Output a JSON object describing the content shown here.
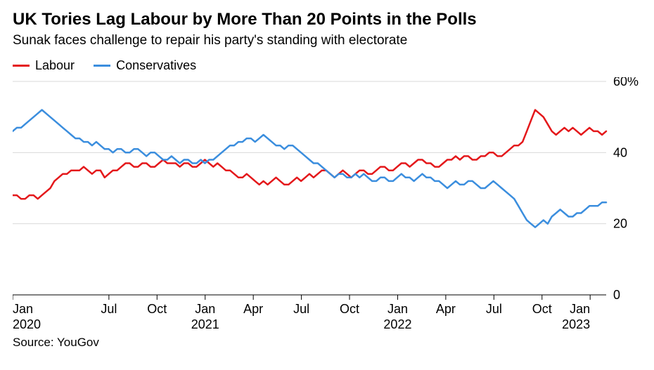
{
  "title": "UK Tories Lag Labour by More Than 20 Points in the Polls",
  "subtitle": "Sunak faces challenge to repair his party's standing with electorate",
  "source": "Source: YouGov",
  "legend": {
    "series1": {
      "label": "Labour",
      "color": "#e4181b"
    },
    "series2": {
      "label": "Conservatives",
      "color": "#3b8ede"
    }
  },
  "chart": {
    "type": "line",
    "background_color": "#ffffff",
    "grid_color": "#d9d9d9",
    "axis_color": "#000000",
    "line_width": 2.5,
    "y": {
      "min": 0,
      "max": 60,
      "ticks": [
        0,
        20,
        40,
        60
      ],
      "suffix_first": "%"
    },
    "x": {
      "start": "2020-01",
      "end": "2023-02",
      "ticks": [
        {
          "line1": "Jan",
          "line2": "2020",
          "at": "2020-01"
        },
        {
          "line1": "Jul",
          "line2": "",
          "at": "2020-07"
        },
        {
          "line1": "Oct",
          "line2": "",
          "at": "2020-10"
        },
        {
          "line1": "Jan",
          "line2": "2021",
          "at": "2021-01"
        },
        {
          "line1": "Apr",
          "line2": "",
          "at": "2021-04"
        },
        {
          "line1": "Jul",
          "line2": "",
          "at": "2021-07"
        },
        {
          "line1": "Oct",
          "line2": "",
          "at": "2021-10"
        },
        {
          "line1": "Jan",
          "line2": "2022",
          "at": "2022-01"
        },
        {
          "line1": "Apr",
          "line2": "",
          "at": "2022-04"
        },
        {
          "line1": "Jul",
          "line2": "",
          "at": "2022-07"
        },
        {
          "line1": "Oct",
          "line2": "",
          "at": "2022-10"
        },
        {
          "line1": "Jan",
          "line2": "2023",
          "at": "2023-01"
        }
      ]
    },
    "series": {
      "labour": {
        "color": "#e4181b",
        "values": [
          28,
          28,
          27,
          27,
          28,
          28,
          27,
          28,
          29,
          30,
          32,
          33,
          34,
          34,
          35,
          35,
          35,
          36,
          35,
          34,
          35,
          35,
          33,
          34,
          35,
          35,
          36,
          37,
          37,
          36,
          36,
          37,
          37,
          36,
          36,
          37,
          38,
          37,
          37,
          37,
          36,
          37,
          37,
          36,
          36,
          37,
          38,
          37,
          36,
          37,
          36,
          35,
          35,
          34,
          33,
          33,
          34,
          33,
          32,
          31,
          32,
          31,
          32,
          33,
          32,
          31,
          31,
          32,
          33,
          32,
          33,
          34,
          33,
          34,
          35,
          35,
          34,
          33,
          34,
          35,
          34,
          33,
          34,
          35,
          35,
          34,
          34,
          35,
          36,
          36,
          35,
          35,
          36,
          37,
          37,
          36,
          37,
          38,
          38,
          37,
          37,
          36,
          36,
          37,
          38,
          38,
          39,
          38,
          39,
          39,
          38,
          38,
          39,
          39,
          40,
          40,
          39,
          39,
          40,
          41,
          42,
          42,
          43,
          46,
          49,
          52,
          51,
          50,
          48,
          46,
          45,
          46,
          47,
          46,
          47,
          46,
          45,
          46,
          47,
          46,
          46,
          45,
          46
        ]
      },
      "conservatives": {
        "color": "#3b8ede",
        "values": [
          46,
          47,
          47,
          48,
          49,
          50,
          51,
          52,
          51,
          50,
          49,
          48,
          47,
          46,
          45,
          44,
          44,
          43,
          43,
          42,
          43,
          42,
          41,
          41,
          40,
          41,
          41,
          40,
          40,
          41,
          41,
          40,
          39,
          40,
          40,
          39,
          38,
          38,
          39,
          38,
          37,
          38,
          38,
          37,
          37,
          38,
          37,
          38,
          38,
          39,
          40,
          41,
          42,
          42,
          43,
          43,
          44,
          44,
          43,
          44,
          45,
          44,
          43,
          42,
          42,
          41,
          42,
          42,
          41,
          40,
          39,
          38,
          37,
          37,
          36,
          35,
          34,
          33,
          34,
          34,
          33,
          33,
          34,
          33,
          34,
          33,
          32,
          32,
          33,
          33,
          32,
          32,
          33,
          34,
          33,
          33,
          32,
          33,
          34,
          33,
          33,
          32,
          32,
          31,
          30,
          31,
          32,
          31,
          31,
          32,
          32,
          31,
          30,
          30,
          31,
          32,
          31,
          30,
          29,
          28,
          27,
          25,
          23,
          21,
          20,
          19,
          20,
          21,
          20,
          22,
          23,
          24,
          23,
          22,
          22,
          23,
          23,
          24,
          25,
          25,
          25,
          26,
          26
        ]
      }
    }
  }
}
